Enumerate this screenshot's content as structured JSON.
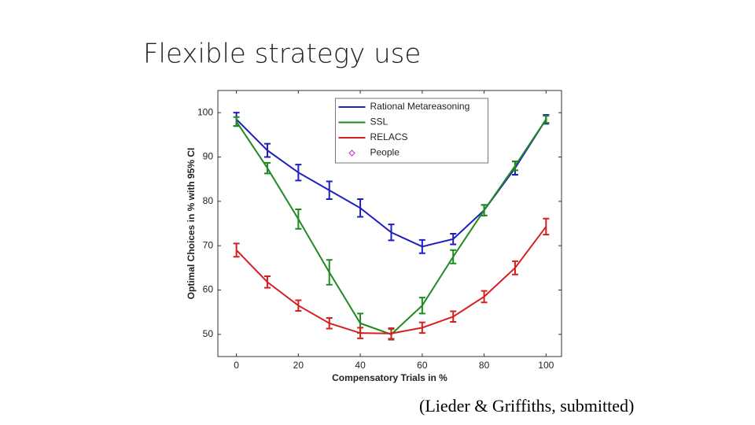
{
  "slide": {
    "title": "Flexible strategy use",
    "citation": "(Lieder & Griffiths, submitted)"
  },
  "chart_data": {
    "type": "line",
    "xlabel": "Compensatory Trials in %",
    "ylabel": "Optimal Choices in % with 95% CI",
    "x": [
      0,
      10,
      20,
      30,
      40,
      50,
      60,
      70,
      80,
      90,
      100
    ],
    "xlim": [
      -6,
      105
    ],
    "xticks": [
      0,
      20,
      40,
      60,
      80,
      100
    ],
    "ylim": [
      45,
      105
    ],
    "yticks": [
      50,
      60,
      70,
      80,
      90,
      100
    ],
    "grid": false,
    "legend": "upper center",
    "series": [
      {
        "name": "Rational Metareasoning",
        "color": "#1f1fbf",
        "marker": "none",
        "values": [
          98.5,
          91.5,
          86.5,
          82.5,
          78.5,
          73,
          69.8,
          71.5,
          78,
          87.5,
          98.5
        ],
        "errors": [
          1.5,
          1.5,
          1.8,
          2,
          2,
          1.8,
          1.5,
          1.2,
          1.2,
          1.5,
          1
        ]
      },
      {
        "name": "SSL",
        "color": "#1f8a1f",
        "marker": "none",
        "values": [
          98,
          87.5,
          76,
          64,
          52.5,
          50,
          56.5,
          67.5,
          78,
          88,
          98.5
        ],
        "errors": [
          1,
          1.2,
          2.2,
          2.8,
          2.2,
          1.2,
          1.8,
          1.5,
          1.2,
          1,
          0.8
        ]
      },
      {
        "name": "RELACS",
        "color": "#d62020",
        "marker": "none",
        "values": [
          69,
          61.8,
          56.5,
          52.5,
          50.3,
          50.2,
          51.5,
          54,
          58.5,
          65,
          74.3
        ],
        "errors": [
          1.5,
          1.3,
          1.2,
          1.2,
          1.2,
          1.2,
          1.2,
          1.2,
          1.3,
          1.5,
          1.8
        ]
      },
      {
        "name": "People",
        "color": "#d020d0",
        "marker": "diamond",
        "values": [
          null,
          null,
          null,
          null,
          null,
          null,
          null,
          null,
          null,
          null,
          null
        ]
      }
    ]
  }
}
